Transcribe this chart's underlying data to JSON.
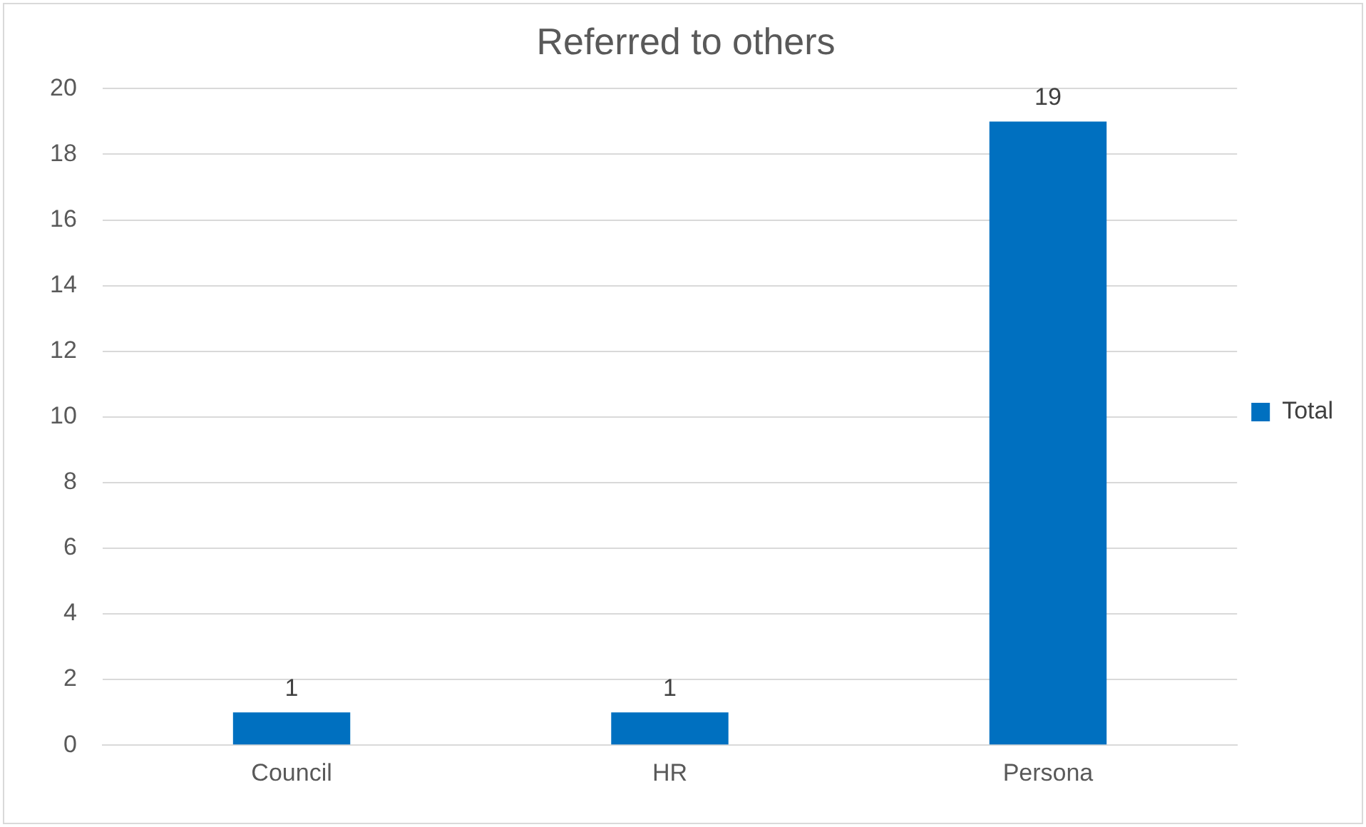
{
  "chart_data": {
    "type": "bar",
    "title": "Referred to others",
    "categories": [
      "Council",
      "HR",
      "Persona"
    ],
    "series": [
      {
        "name": "Total",
        "color": "#0070c0",
        "values": [
          1,
          1,
          19
        ]
      }
    ],
    "ylim": [
      0,
      20
    ],
    "yticks": [
      0,
      2,
      4,
      6,
      8,
      10,
      12,
      14,
      16,
      18,
      20
    ],
    "grid": "y",
    "legend": "right",
    "data_labels": true
  }
}
